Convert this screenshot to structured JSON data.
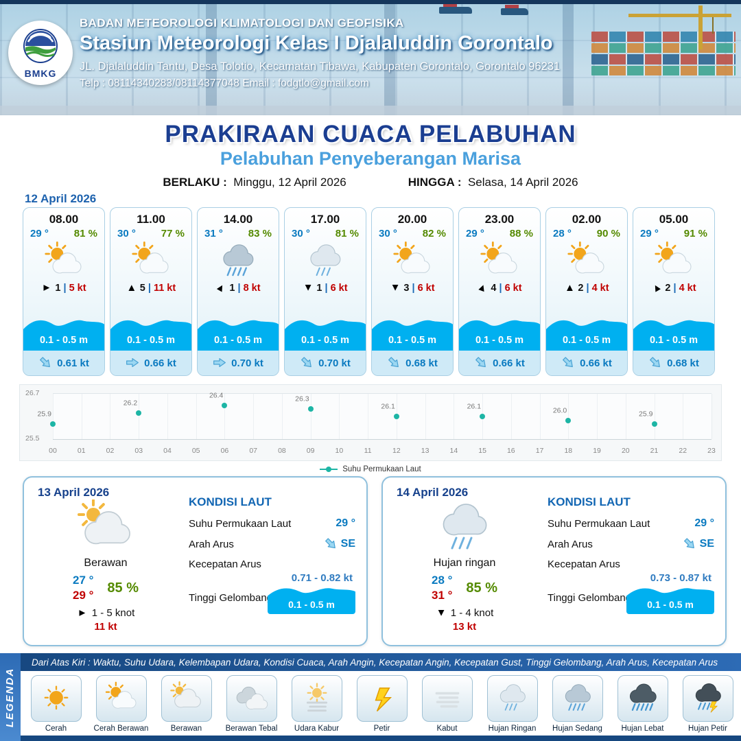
{
  "header": {
    "agency": "BADAN METEOROLOGI KLIMATOLOGI DAN GEOFISIKA",
    "station": "Stasiun Meteorologi Kelas I Djalaluddin Gorontalo",
    "address": "JL. Djalaluddin Tantu, Desa Tolotio, Kecamatan Tibawa, Kabupaten Gorontalo, Gorontalo 96231",
    "contact": "Telp : 08114340283/08114377048 Email : fodgtlo@gmail.com",
    "logo_label": "BMKG"
  },
  "title": {
    "main": "PRAKIRAAN CUACA PELABUHAN",
    "sub": "Pelabuhan Penyeberangan Marisa",
    "valid_label": "BERLAKU :",
    "valid_value": "Minggu, 12 April 2026",
    "until_label": "HINGGA :",
    "until_value": "Selasa, 14 April 2026"
  },
  "forecast_date": "12 April 2026",
  "ui": {
    "sep": "|"
  },
  "cards": [
    {
      "time": "08.00",
      "temp": "29 °",
      "hum": "81 %",
      "icon": "cerah-berawan",
      "wdeg": 90,
      "wval": "1",
      "wspd": "5 kt",
      "wave": "0.1 - 0.5 m",
      "cdeg": 135,
      "cur": "0.61 kt"
    },
    {
      "time": "11.00",
      "temp": "30 °",
      "hum": "77 %",
      "icon": "cerah-berawan",
      "wdeg": 0,
      "wval": "5",
      "wspd": "11 kt",
      "wave": "0.1 - 0.5 m",
      "cdeg": 90,
      "cur": "0.66 kt"
    },
    {
      "time": "14.00",
      "temp": "31 °",
      "hum": "83 %",
      "icon": "hujan-sedang",
      "wdeg": 30,
      "wval": "1",
      "wspd": "8 kt",
      "wave": "0.1 - 0.5 m",
      "cdeg": 90,
      "cur": "0.70 kt"
    },
    {
      "time": "17.00",
      "temp": "30 °",
      "hum": "81 %",
      "icon": "hujan-ringan",
      "wdeg": 180,
      "wval": "1",
      "wspd": "6 kt",
      "wave": "0.1 - 0.5 m",
      "cdeg": 135,
      "cur": "0.70 kt"
    },
    {
      "time": "20.00",
      "temp": "30 °",
      "hum": "82 %",
      "icon": "cerah-berawan",
      "wdeg": 180,
      "wval": "3",
      "wspd": "6 kt",
      "wave": "0.1 - 0.5 m",
      "cdeg": 135,
      "cur": "0.68 kt"
    },
    {
      "time": "23.00",
      "temp": "29 °",
      "hum": "88 %",
      "icon": "cerah-berawan",
      "wdeg": 20,
      "wval": "4",
      "wspd": "6 kt",
      "wave": "0.1 - 0.5 m",
      "cdeg": 135,
      "cur": "0.66 kt"
    },
    {
      "time": "02.00",
      "temp": "28 °",
      "hum": "90 %",
      "icon": "cerah-berawan",
      "wdeg": 0,
      "wval": "2",
      "wspd": "4 kt",
      "wave": "0.1 - 0.5 m",
      "cdeg": 135,
      "cur": "0.66 kt"
    },
    {
      "time": "05.00",
      "temp": "29 °",
      "hum": "91 %",
      "icon": "cerah-berawan",
      "wdeg": 330,
      "wval": "2",
      "wspd": "4 kt",
      "wave": "0.1 - 0.5 m",
      "cdeg": 135,
      "cur": "0.68 kt"
    }
  ],
  "chart_data": {
    "type": "line",
    "title": "Suhu Permukaan Laut",
    "x_hours": [
      0,
      3,
      6,
      9,
      12,
      15,
      18,
      21
    ],
    "values": [
      25.9,
      26.2,
      26.4,
      26.3,
      26.1,
      26.1,
      26.0,
      25.9
    ],
    "x_ticks": [
      "00",
      "01",
      "02",
      "03",
      "04",
      "05",
      "06",
      "07",
      "08",
      "09",
      "10",
      "11",
      "12",
      "13",
      "14",
      "15",
      "16",
      "17",
      "18",
      "19",
      "20",
      "21",
      "22",
      "23"
    ],
    "ylim": [
      25.5,
      26.7
    ],
    "y_tick_labels": [
      "26.7",
      "25.5"
    ],
    "legend": "Suhu Permukaan Laut",
    "point_color": "#1db5a5",
    "grid": true,
    "legend_position": "bottom-center"
  },
  "day_cards": [
    {
      "date": "13 April 2026",
      "icon": "berawan",
      "condition": "Berawan",
      "tmin": "27 °",
      "tmax": "29 °",
      "hum": "85 %",
      "wdeg": 90,
      "wind": "1  - 5 knot",
      "gust": "11 kt",
      "sea_title": "KONDISI LAUT",
      "sst_label": "Suhu Permukaan Laut",
      "sst": "29 °",
      "dir_label": "Arah Arus",
      "dir": "SE",
      "dir_deg": 135,
      "spd_label": "Kecepatan Arus",
      "spd": "0.71  - 0.82 kt",
      "wave_label": "Tinggi Gelombang",
      "wave": "0.1 - 0.5 m"
    },
    {
      "date": "14 April 2026",
      "icon": "hujan-ringan",
      "condition": "Hujan ringan",
      "tmin": "28 °",
      "tmax": "31 °",
      "hum": "85 %",
      "wdeg": 180,
      "wind": "1  - 4 knot",
      "gust": "13 kt",
      "sea_title": "KONDISI LAUT",
      "sst_label": "Suhu Permukaan Laut",
      "sst": "29 °",
      "dir_label": "Arah Arus",
      "dir": "SE",
      "dir_deg": 135,
      "spd_label": "Kecepatan Arus",
      "spd": "0.73  - 0.87 kt",
      "wave_label": "Tinggi Gelombang",
      "wave": "0.1 - 0.5 m"
    }
  ],
  "legend": {
    "note": "Dari Atas Kiri : Waktu, Suhu Udara, Kelembapan Udara, Kondisi Cuaca, Arah Angin, Kecepatan Angin, Kecepatan Gust, Tinggi Gelombang, Arah Arus, Kecepatan Arus",
    "side_label": "LEGENDA",
    "items": [
      {
        "icon": "cerah",
        "label": "Cerah"
      },
      {
        "icon": "cerah-berawan",
        "label": "Cerah Berawan"
      },
      {
        "icon": "berawan",
        "label": "Berawan"
      },
      {
        "icon": "berawan-tebal",
        "label": "Berawan Tebal"
      },
      {
        "icon": "udara-kabur",
        "label": "Udara Kabur"
      },
      {
        "icon": "petir",
        "label": "Petir"
      },
      {
        "icon": "kabut",
        "label": "Kabut"
      },
      {
        "icon": "hujan-ringan",
        "label": "Hujan Ringan"
      },
      {
        "icon": "hujan-sedang",
        "label": "Hujan Sedang"
      },
      {
        "icon": "hujan-lebat",
        "label": "Hujan Lebat"
      },
      {
        "icon": "hujan-petir",
        "label": "Hujan Petir"
      }
    ]
  },
  "colors": {
    "primary_blue": "#1b3e91",
    "subtitle_blue": "#4aa0dd",
    "wave_blue": "#00b0f0",
    "temp_blue": "#0a7ac0",
    "temp_red": "#c00000",
    "humidity_green": "#548a00",
    "sst_teal": "#1db5a5",
    "footer_blue": "#16477f"
  }
}
